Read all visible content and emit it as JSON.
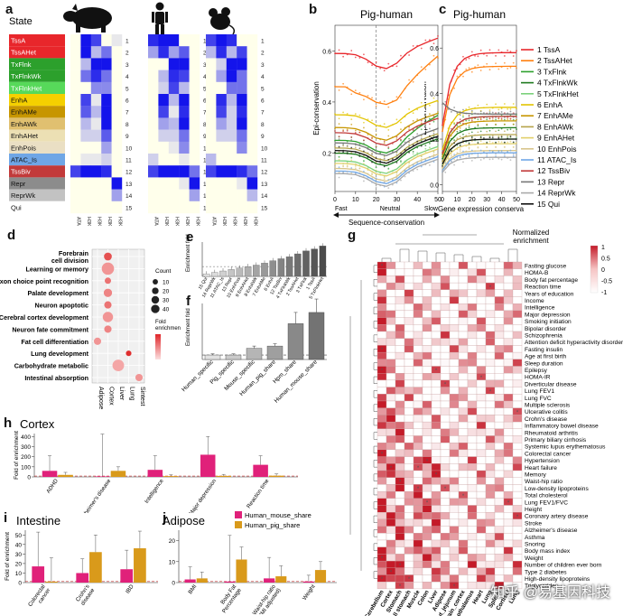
{
  "panel_letters": {
    "a": "a",
    "b": "b",
    "c": "c",
    "d": "d",
    "e": "e",
    "f": "f",
    "g": "g",
    "h": "h",
    "i": "i",
    "j": "j"
  },
  "panel_a": {
    "state_header": "State",
    "states": [
      {
        "label": "TssA",
        "color": "#e8262b"
      },
      {
        "label": "TssAHet",
        "color": "#e8262b"
      },
      {
        "label": "TxFlnk",
        "color": "#2ca02c"
      },
      {
        "label": "TxFlnkWk",
        "color": "#2ca02c"
      },
      {
        "label": "TxFlnkHet",
        "color": "#57d95a"
      },
      {
        "label": "EnhA",
        "color": "#f5d000"
      },
      {
        "label": "EnhAMe",
        "color": "#c79600"
      },
      {
        "label": "EnhAWk",
        "color": "#e0c070"
      },
      {
        "label": "EnhAHet",
        "color": "#ece0b4"
      },
      {
        "label": "EnhPois",
        "color": "#eadfc4"
      },
      {
        "label": "ATAC_Is",
        "color": "#6fa6e6"
      },
      {
        "label": "TssBiv",
        "color": "#c23a3a"
      },
      {
        "label": "Repr",
        "color": "#8c8c8c"
      },
      {
        "label": "ReprWk",
        "color": "#c2c2c2"
      },
      {
        "label": "Qui",
        "color": "#ffffff"
      }
    ],
    "state_numbers": [
      "1",
      "2",
      "3",
      "4",
      "5",
      "6",
      "7",
      "8",
      "9",
      "10",
      "11",
      "12",
      "13",
      "14",
      "15"
    ],
    "marks": [
      "ATAC",
      "H3K27ac",
      "H3K4me3",
      "H3K4me1",
      "H3K27me3"
    ],
    "species_icons": [
      "pig-icon",
      "human-icon",
      "mouse-icon"
    ],
    "heatmaps": [
      [
        [
          0,
          1,
          0.8,
          0,
          0.1
        ],
        [
          0,
          1,
          0.3,
          0.6,
          0
        ],
        [
          0,
          0.3,
          1,
          1,
          0
        ],
        [
          0,
          0.6,
          0.9,
          0.6,
          0
        ],
        [
          0,
          0,
          0.5,
          0.5,
          0
        ],
        [
          0,
          0.8,
          0.1,
          1,
          0
        ],
        [
          0,
          0.7,
          0.3,
          1,
          0
        ],
        [
          0,
          0.3,
          0.1,
          1,
          0
        ],
        [
          0,
          0.2,
          0.2,
          0.7,
          0
        ],
        [
          0,
          0,
          0,
          0.4,
          0
        ],
        [
          0,
          0.1,
          0.1,
          0.2,
          0
        ],
        [
          0.8,
          1,
          1,
          0.9,
          0
        ],
        [
          0,
          0,
          0,
          0,
          1
        ],
        [
          0,
          0,
          0,
          0,
          0.4
        ],
        [
          0,
          0,
          0,
          0,
          0
        ]
      ],
      [
        [
          0.9,
          1,
          1,
          0,
          0
        ],
        [
          0.4,
          0.9,
          0.4,
          0.7,
          0
        ],
        [
          0,
          0,
          1,
          1,
          0
        ],
        [
          0,
          0.3,
          0.9,
          0.8,
          0
        ],
        [
          0,
          0.2,
          0.8,
          0.3,
          0
        ],
        [
          0,
          1,
          0.3,
          1,
          0
        ],
        [
          0,
          0.8,
          0.1,
          0.9,
          0
        ],
        [
          0,
          0.4,
          0.3,
          1,
          0
        ],
        [
          0,
          0.2,
          0.2,
          0.6,
          0
        ],
        [
          0,
          0,
          0.1,
          0.5,
          0
        ],
        [
          0.2,
          0,
          0,
          0.1,
          0
        ],
        [
          0.8,
          1,
          1,
          1,
          0.6
        ],
        [
          0,
          0,
          0,
          0.1,
          1
        ],
        [
          0,
          0,
          0,
          0,
          0.4
        ],
        [
          0,
          0,
          0,
          0,
          0
        ]
      ],
      [
        [
          0.8,
          1,
          0.9,
          0,
          0
        ],
        [
          0.3,
          0.9,
          0.3,
          0.8,
          0
        ],
        [
          0,
          0.2,
          1,
          1,
          0
        ],
        [
          0,
          0.4,
          1,
          0.6,
          0
        ],
        [
          0,
          0,
          0.6,
          0.6,
          0
        ],
        [
          0,
          0.9,
          0.3,
          1,
          0
        ],
        [
          0,
          0.8,
          0.2,
          0.9,
          0
        ],
        [
          0,
          0.4,
          0.2,
          1,
          0
        ],
        [
          0,
          0.2,
          0.2,
          0.6,
          0
        ],
        [
          0,
          0,
          0,
          0.5,
          0
        ],
        [
          0.3,
          0,
          0,
          0,
          0
        ],
        [
          0.8,
          1,
          1,
          0.9,
          0.6
        ],
        [
          0,
          0,
          0,
          0.1,
          1
        ],
        [
          0,
          0,
          0,
          0,
          0.3
        ],
        [
          0,
          0,
          0,
          0,
          0
        ]
      ]
    ]
  },
  "panel_b": {
    "title": "Pig-human",
    "ylabel": "Epi-conservation",
    "xlabel": "Sequence-conservation",
    "yticks": [
      "0.2",
      "0.4",
      "0.6"
    ],
    "xticks": [
      "0",
      "10",
      "20",
      "30",
      "40",
      "50"
    ],
    "axis_hints": {
      "left": "Fast",
      "mid": "Neutral",
      "right": "Slow"
    }
  },
  "panel_c": {
    "title": "Pig-human",
    "ylabel": "Epi-conservation",
    "xlabel": "Gene expression conservation",
    "yticks": [
      "0.0",
      "0.2",
      "0.4",
      "0.6"
    ],
    "xticks": [
      "0",
      "10",
      "20",
      "30",
      "40",
      "50"
    ]
  },
  "legend_bc": [
    {
      "label": "1 TssA",
      "color": "#e8262b"
    },
    {
      "label": "2 TssAHet",
      "color": "#ff7f0e"
    },
    {
      "label": "3 TxFlnk",
      "color": "#2ca02c"
    },
    {
      "label": "4 TxFlnkWk",
      "color": "#1d7a1d"
    },
    {
      "label": "5 TxFlnkHet",
      "color": "#7ad17a"
    },
    {
      "label": "6 EnhA",
      "color": "#e3c400"
    },
    {
      "label": "7 EnhAMe",
      "color": "#c79600"
    },
    {
      "label": "8 EnhAWk",
      "color": "#b5a34a"
    },
    {
      "label": "9 EnhAHet",
      "color": "#e2cf6a"
    },
    {
      "label": "10 EnhPois",
      "color": "#d8c58c"
    },
    {
      "label": "11 ATAC_Is",
      "color": "#6fa6e6"
    },
    {
      "label": "12 TssBiv",
      "color": "#c23a3a"
    },
    {
      "label": "13 Repr",
      "color": "#777777"
    },
    {
      "label": "14 ReprWk",
      "color": "#aaaaaa"
    },
    {
      "label": "15 Qui",
      "color": "#111111"
    }
  ],
  "panel_d": {
    "terms": [
      "Forebrain\ncell division",
      "Learning or memory",
      "Axon choice point recognition",
      "Palate development",
      "Neuron apoptotic",
      "Cerebral cortex development",
      "Neuron fate commitment",
      "Fat cell differentiation",
      "Lung development",
      "Carbohydrate metabolic",
      "Intestinal absorption"
    ],
    "tissues": [
      "Adipose",
      "Cortex",
      "Liver",
      "Lung",
      "Sintest"
    ],
    "points": [
      {
        "term": 0,
        "tissue": 1,
        "count": 10,
        "enrich": 0.7
      },
      {
        "term": 1,
        "tissue": 1,
        "count": 35,
        "enrich": 0.3
      },
      {
        "term": 2,
        "tissue": 1,
        "count": 5,
        "enrich": 0.5
      },
      {
        "term": 3,
        "tissue": 1,
        "count": 12,
        "enrich": 0.4
      },
      {
        "term": 4,
        "tissue": 1,
        "count": 8,
        "enrich": 0.5
      },
      {
        "term": 5,
        "tissue": 1,
        "count": 22,
        "enrich": 0.3
      },
      {
        "term": 6,
        "tissue": 1,
        "count": 8,
        "enrich": 0.4
      },
      {
        "term": 7,
        "tissue": 0,
        "count": 8,
        "enrich": 0.3
      },
      {
        "term": 8,
        "tissue": 3,
        "count": 3,
        "enrich": 0.9
      },
      {
        "term": 9,
        "tissue": 2,
        "count": 30,
        "enrich": 0.2
      },
      {
        "term": 10,
        "tissue": 4,
        "count": 8,
        "enrich": 0.3
      }
    ],
    "count_title": "Count",
    "count_levels": [
      10,
      20,
      30,
      40
    ],
    "fold_title": "Fold\nenrichment"
  },
  "panel_e": {
    "ylabel": "Enrichment fold",
    "categories": [
      "15 Qui",
      "14 ReprWk",
      "11 ATAC_Is",
      "13 Repr",
      "10 EnhPois",
      "9 EnhAHet",
      "8 EnhAWk",
      "7 EnhAMe",
      "6 EnhA",
      "12 TssBiv",
      "4 TxFlnkWk",
      "2 TssAHet",
      "3 TxFlnk",
      "1 TssA",
      "5 TxFlnkHet"
    ],
    "values": [
      0.25,
      0.4,
      0.55,
      0.7,
      0.85,
      1.0,
      1.15,
      1.35,
      1.6,
      1.8,
      2.0,
      2.3,
      2.6,
      2.8,
      3.1
    ],
    "ymax": 3.5
  },
  "panel_f": {
    "ylabel": "Enrichment fold",
    "categories": [
      "Human_specific",
      "Pig_specific",
      "Mouse_specific",
      "Human_pig_share",
      "Hpm_share",
      "Human_mouse_share"
    ],
    "values": [
      2,
      2,
      5,
      6,
      16,
      21
    ],
    "errors": [
      0.5,
      0.5,
      1,
      1,
      5,
      6
    ],
    "ymax": 25
  },
  "panel_g": {
    "colorbar_title": "Normalized\nenrichment",
    "colorbar_ticks": [
      "1",
      "0.5",
      "0",
      "-0.5",
      "-1"
    ],
    "traits": [
      "Fasting glucose",
      "HOMA-B",
      "Body fat percentage",
      "Reaction time",
      "Years of education",
      "Income",
      "Intelligence",
      "Major depression",
      "Smoking initiation",
      "Bipolar disorder",
      "Schizophrenia",
      "Attention deficit hyperactivity disorder",
      "Fasting insulin",
      "Age at first birth",
      "Sleep duration",
      "Epilepsy",
      "HOMA-IR",
      "Diverticular disease",
      "Lung FEV1",
      "Lung FVC",
      "Multiple sclerosis",
      "Ulcerative colitis",
      "Crohn's disease",
      "Inflammatory bowel disease",
      "Rheumatoid arthritis",
      "Primary biliary cirrhosis",
      "Systemic lupus erythematosus",
      "Colorectal cancer",
      "Hypertension",
      "Heart failure",
      "Memory",
      "Waist-hip ratio",
      "Low-density lipoproteins",
      "Total cholesterol",
      "Lung FEV1/FVC",
      "Height",
      "Coronary artery disease",
      "Stroke",
      "Alzheimer's disease",
      "Asthma",
      "Snoring",
      "Body mass index",
      "Weight",
      "Number of children ever born",
      "Type 2 diabetes",
      "High-density lipoproteins",
      "Triglycerides"
    ],
    "tissues": [
      "Cerebellum",
      "Cortex",
      "Stomach",
      "All stomach",
      "Muscle",
      "Colon",
      "Liver",
      "Adipose",
      "Gut_jejunum",
      "Brain_cortex",
      "Hypothalamus",
      "Heart",
      "Lung",
      "Spleen",
      "Cortisol",
      "Lung2"
    ],
    "tissue_labels": [
      "Cerebellum",
      "Cortex",
      "Stomach",
      "All stomach",
      "Muscle",
      "Colon",
      "Liver",
      "Adipose",
      "Gut_jejunum",
      "Brain_cortex",
      "Hypothalamus",
      "Heart",
      "Lung",
      "Spleen",
      "Cortisol",
      "Lung"
    ]
  },
  "panel_h": {
    "title": "Cortex",
    "ylabel": "Fold of enrichment",
    "categories": [
      "ADHD",
      "Alzheimer's disease",
      "Intelligence",
      "Major depression",
      "Reaction time"
    ],
    "yticks": [
      "0",
      "100",
      "200",
      "300",
      "400"
    ],
    "ymax": 430,
    "human_mouse": [
      60,
      5,
      70,
      220,
      120
    ],
    "human_mouse_err": [
      150,
      420,
      140,
      180,
      90
    ],
    "human_pig": [
      20,
      60,
      8,
      10,
      12
    ],
    "human_pig_err": [
      25,
      40,
      12,
      15,
      18
    ]
  },
  "legend_hij": [
    {
      "label": "Human_mouse_share",
      "color": "#e0217a"
    },
    {
      "label": "Human_pig_share",
      "color": "#d99a1b"
    }
  ],
  "panel_i": {
    "title": "Intestine",
    "ylabel": "Fold of enrichment",
    "categories": [
      "Colorectal\ncancer",
      "Crohn's\ndisease",
      "IBD"
    ],
    "yticks": [
      "0",
      "10",
      "20",
      "30",
      "40",
      "50"
    ],
    "ymax": 55,
    "human_mouse": [
      17,
      10,
      14
    ],
    "human_mouse_err": [
      36,
      15,
      20
    ],
    "human_pig": [
      1,
      32,
      36
    ],
    "human_pig_err": [
      25,
      18,
      18
    ]
  },
  "panel_j": {
    "title": "Adipose",
    "categories": [
      "BMI",
      "Body Fat\nPercentage",
      "Waist-hip ratio\n(BMI adjusted)",
      "Weight"
    ],
    "yticks": [
      "0",
      "10",
      "20"
    ],
    "ymax": 25,
    "human_mouse": [
      1.5,
      0.5,
      2,
      0.5
    ],
    "human_mouse_err": [
      6,
      22,
      10,
      3
    ],
    "human_pig": [
      2,
      11,
      3,
      6
    ],
    "human_pig_err": [
      3,
      6,
      5,
      4
    ]
  },
  "watermark": "知乎 @易基因科技"
}
